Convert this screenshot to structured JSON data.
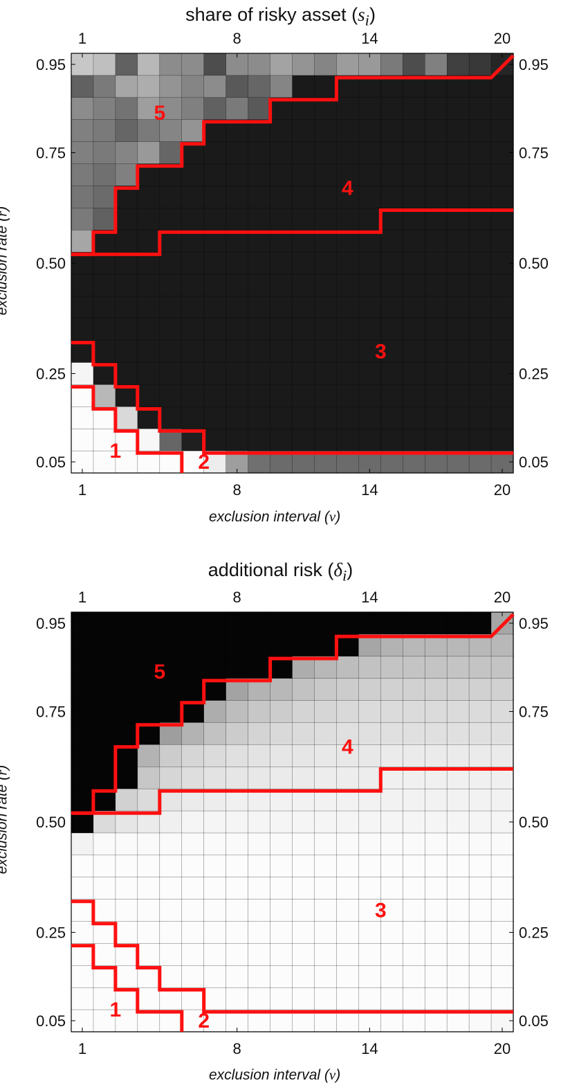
{
  "chart_data": [
    {
      "type": "heatmap",
      "title_text": "share of risky asset",
      "title_symbol": "s",
      "title_subscript": "i",
      "xlabel_text": "exclusion interval",
      "xlabel_symbol": "v",
      "ylabel_text": "exclusion rate",
      "ylabel_symbol": "r",
      "x_range": [
        1,
        20
      ],
      "y_range": [
        0.05,
        0.95
      ],
      "x_ticks": [
        "1",
        "8",
        "14",
        "20"
      ],
      "y_ticks": [
        "0.05",
        "0.25",
        "0.50",
        "0.75",
        "0.95"
      ],
      "region_labels": [
        "1",
        "2",
        "3",
        "4",
        "5"
      ],
      "colormap": "grayscale (black = low, white = high)",
      "rows_top_to_bottom": [
        [
          0.78,
          0.75,
          0.38,
          0.72,
          0.55,
          0.55,
          0.3,
          0.55,
          0.55,
          0.64,
          0.58,
          0.52,
          0.61,
          0.6,
          0.48,
          0.3,
          0.5,
          0.25,
          0.22,
          0.15
        ],
        [
          0.38,
          0.48,
          0.65,
          0.68,
          0.58,
          0.52,
          0.55,
          0.35,
          0.4,
          0.52,
          0.1,
          0.1,
          0.1,
          0.1,
          0.1,
          0.1,
          0.1,
          0.1,
          0.1,
          0.1
        ],
        [
          0.55,
          0.5,
          0.45,
          0.62,
          0.55,
          0.5,
          0.38,
          0.48,
          0.35,
          0.1,
          0.1,
          0.1,
          0.1,
          0.1,
          0.1,
          0.1,
          0.1,
          0.1,
          0.1,
          0.1
        ],
        [
          0.5,
          0.48,
          0.4,
          0.48,
          0.52,
          0.58,
          0.1,
          0.1,
          0.1,
          0.1,
          0.1,
          0.1,
          0.1,
          0.1,
          0.1,
          0.1,
          0.1,
          0.1,
          0.1,
          0.1
        ],
        [
          0.5,
          0.48,
          0.52,
          0.6,
          0.4,
          0.1,
          0.1,
          0.1,
          0.1,
          0.1,
          0.1,
          0.1,
          0.1,
          0.1,
          0.1,
          0.1,
          0.1,
          0.1,
          0.1,
          0.1
        ],
        [
          0.48,
          0.44,
          0.5,
          0.1,
          0.1,
          0.1,
          0.1,
          0.1,
          0.1,
          0.1,
          0.1,
          0.1,
          0.1,
          0.1,
          0.1,
          0.1,
          0.1,
          0.1,
          0.1,
          0.1
        ],
        [
          0.46,
          0.42,
          0.1,
          0.1,
          0.1,
          0.1,
          0.1,
          0.1,
          0.1,
          0.1,
          0.1,
          0.1,
          0.1,
          0.1,
          0.1,
          0.1,
          0.1,
          0.1,
          0.1,
          0.1
        ],
        [
          0.48,
          0.38,
          0.1,
          0.1,
          0.1,
          0.1,
          0.1,
          0.1,
          0.1,
          0.1,
          0.1,
          0.1,
          0.1,
          0.1,
          0.1,
          0.1,
          0.1,
          0.1,
          0.1,
          0.1
        ],
        [
          0.65,
          0.1,
          0.1,
          0.1,
          0.1,
          0.1,
          0.1,
          0.1,
          0.1,
          0.1,
          0.1,
          0.1,
          0.1,
          0.1,
          0.1,
          0.1,
          0.1,
          0.1,
          0.1,
          0.1
        ],
        [
          0.1,
          0.1,
          0.1,
          0.1,
          0.1,
          0.1,
          0.1,
          0.1,
          0.1,
          0.1,
          0.1,
          0.1,
          0.1,
          0.1,
          0.1,
          0.1,
          0.1,
          0.1,
          0.1,
          0.1
        ],
        [
          0.1,
          0.1,
          0.1,
          0.1,
          0.1,
          0.1,
          0.1,
          0.1,
          0.1,
          0.1,
          0.1,
          0.1,
          0.1,
          0.1,
          0.1,
          0.1,
          0.1,
          0.1,
          0.1,
          0.1
        ],
        [
          0.1,
          0.1,
          0.1,
          0.1,
          0.1,
          0.1,
          0.1,
          0.1,
          0.1,
          0.1,
          0.1,
          0.1,
          0.1,
          0.1,
          0.1,
          0.1,
          0.1,
          0.1,
          0.1,
          0.1
        ],
        [
          0.1,
          0.1,
          0.1,
          0.1,
          0.1,
          0.1,
          0.1,
          0.1,
          0.1,
          0.1,
          0.1,
          0.1,
          0.1,
          0.1,
          0.1,
          0.1,
          0.1,
          0.1,
          0.1,
          0.1
        ],
        [
          0.1,
          0.1,
          0.1,
          0.1,
          0.1,
          0.1,
          0.1,
          0.1,
          0.1,
          0.1,
          0.1,
          0.1,
          0.1,
          0.1,
          0.1,
          0.1,
          0.1,
          0.1,
          0.1,
          0.1
        ],
        [
          0.96,
          0.1,
          0.1,
          0.1,
          0.1,
          0.1,
          0.1,
          0.1,
          0.1,
          0.1,
          0.1,
          0.1,
          0.1,
          0.1,
          0.1,
          0.1,
          0.1,
          0.1,
          0.1,
          0.1
        ],
        [
          0.99,
          0.72,
          0.1,
          0.1,
          0.1,
          0.1,
          0.1,
          0.1,
          0.1,
          0.1,
          0.1,
          0.1,
          0.1,
          0.1,
          0.1,
          0.1,
          0.1,
          0.1,
          0.1,
          0.1
        ],
        [
          0.99,
          0.99,
          0.85,
          0.1,
          0.1,
          0.1,
          0.1,
          0.1,
          0.1,
          0.1,
          0.1,
          0.1,
          0.1,
          0.1,
          0.1,
          0.1,
          0.1,
          0.1,
          0.1,
          0.1
        ],
        [
          0.99,
          0.99,
          0.99,
          0.97,
          0.4,
          0.12,
          0.1,
          0.1,
          0.1,
          0.1,
          0.1,
          0.1,
          0.1,
          0.1,
          0.1,
          0.1,
          0.1,
          0.1,
          0.1,
          0.1
        ],
        [
          0.99,
          0.99,
          0.99,
          0.99,
          0.99,
          0.99,
          0.93,
          0.62,
          0.44,
          0.42,
          0.42,
          0.42,
          0.42,
          0.42,
          0.42,
          0.42,
          0.42,
          0.42,
          0.42,
          0.42
        ]
      ],
      "boundaries": {
        "1-2": [
          [
            1,
            0.22
          ],
          [
            2,
            0.22
          ],
          [
            2,
            0.17
          ],
          [
            3,
            0.17
          ],
          [
            3,
            0.12
          ],
          [
            4,
            0.12
          ],
          [
            4,
            0.07
          ],
          [
            6,
            0.07
          ],
          [
            6,
            0.02
          ]
        ],
        "2-3": [
          [
            1,
            0.32
          ],
          [
            2,
            0.32
          ],
          [
            2,
            0.27
          ],
          [
            3,
            0.27
          ],
          [
            3,
            0.22
          ],
          [
            4,
            0.22
          ],
          [
            4,
            0.17
          ],
          [
            5,
            0.17
          ],
          [
            5,
            0.12
          ],
          [
            7,
            0.12
          ],
          [
            7,
            0.07
          ],
          [
            20,
            0.07
          ]
        ],
        "3-4": [
          [
            1,
            0.52
          ],
          [
            5,
            0.52
          ],
          [
            5,
            0.57
          ],
          [
            15,
            0.57
          ],
          [
            15,
            0.62
          ],
          [
            20,
            0.62
          ]
        ],
        "4-5": [
          [
            1,
            0.52
          ],
          [
            2,
            0.52
          ],
          [
            2,
            0.57
          ],
          [
            3,
            0.57
          ],
          [
            3,
            0.67
          ],
          [
            4,
            0.67
          ],
          [
            4,
            0.72
          ],
          [
            6,
            0.72
          ],
          [
            6,
            0.77
          ],
          [
            7,
            0.77
          ],
          [
            7,
            0.82
          ],
          [
            10,
            0.82
          ],
          [
            10,
            0.87
          ],
          [
            13,
            0.87
          ],
          [
            13,
            0.92
          ],
          [
            20,
            0.92
          ],
          [
            20,
            0.97
          ]
        ]
      }
    },
    {
      "type": "heatmap",
      "title_text": "additional risk",
      "title_symbol": "δ",
      "title_subscript": "i",
      "xlabel_text": "exclusion interval",
      "xlabel_symbol": "v",
      "ylabel_text": "exclusion rate",
      "ylabel_symbol": "r",
      "x_range": [
        1,
        20
      ],
      "y_range": [
        0.05,
        0.95
      ],
      "x_ticks": [
        "1",
        "8",
        "14",
        "20"
      ],
      "y_ticks": [
        "0.05",
        "0.25",
        "0.50",
        "0.75",
        "0.95"
      ],
      "region_labels": [
        "1",
        "2",
        "3",
        "4",
        "5"
      ],
      "colormap": "grayscale (black = high, white = low)",
      "rows_top_to_bottom": [
        [
          0.02,
          0.02,
          0.02,
          0.02,
          0.02,
          0.02,
          0.02,
          0.02,
          0.02,
          0.02,
          0.02,
          0.02,
          0.02,
          0.02,
          0.02,
          0.02,
          0.02,
          0.02,
          0.02,
          0.65
        ],
        [
          0.02,
          0.02,
          0.02,
          0.02,
          0.02,
          0.02,
          0.02,
          0.02,
          0.02,
          0.02,
          0.02,
          0.02,
          0.02,
          0.65,
          0.7,
          0.72,
          0.72,
          0.72,
          0.72,
          0.72
        ],
        [
          0.02,
          0.02,
          0.02,
          0.02,
          0.02,
          0.02,
          0.02,
          0.02,
          0.02,
          0.02,
          0.68,
          0.72,
          0.74,
          0.76,
          0.77,
          0.77,
          0.77,
          0.77,
          0.77,
          0.77
        ],
        [
          0.02,
          0.02,
          0.02,
          0.02,
          0.02,
          0.02,
          0.02,
          0.64,
          0.7,
          0.72,
          0.76,
          0.79,
          0.8,
          0.81,
          0.82,
          0.82,
          0.82,
          0.82,
          0.82,
          0.82
        ],
        [
          0.02,
          0.02,
          0.02,
          0.02,
          0.02,
          0.02,
          0.68,
          0.74,
          0.78,
          0.8,
          0.83,
          0.84,
          0.85,
          0.86,
          0.86,
          0.86,
          0.86,
          0.86,
          0.86,
          0.86
        ],
        [
          0.02,
          0.02,
          0.02,
          0.02,
          0.62,
          0.7,
          0.76,
          0.8,
          0.83,
          0.85,
          0.86,
          0.87,
          0.88,
          0.88,
          0.88,
          0.88,
          0.88,
          0.88,
          0.88,
          0.88
        ],
        [
          0.02,
          0.02,
          0.02,
          0.7,
          0.8,
          0.84,
          0.86,
          0.88,
          0.89,
          0.9,
          0.9,
          0.91,
          0.91,
          0.91,
          0.92,
          0.92,
          0.92,
          0.92,
          0.92,
          0.92
        ],
        [
          0.02,
          0.02,
          0.02,
          0.78,
          0.84,
          0.87,
          0.89,
          0.9,
          0.91,
          0.92,
          0.92,
          0.93,
          0.93,
          0.93,
          0.94,
          0.94,
          0.94,
          0.94,
          0.94,
          0.94
        ],
        [
          0.02,
          0.02,
          0.82,
          0.86,
          0.9,
          0.92,
          0.93,
          0.94,
          0.94,
          0.95,
          0.95,
          0.95,
          0.95,
          0.95,
          0.95,
          0.95,
          0.95,
          0.95,
          0.95,
          0.95
        ],
        [
          0.02,
          0.86,
          0.9,
          0.92,
          0.94,
          0.96,
          0.96,
          0.96,
          0.96,
          0.96,
          0.96,
          0.96,
          0.96,
          0.96,
          0.96,
          0.96,
          0.96,
          0.96,
          0.96,
          0.96
        ],
        [
          0.95,
          0.98,
          0.98,
          0.98,
          0.98,
          0.98,
          0.98,
          0.98,
          0.98,
          0.98,
          0.98,
          0.98,
          0.98,
          0.98,
          0.98,
          0.98,
          0.98,
          0.98,
          0.98,
          0.98
        ],
        [
          0.99,
          0.99,
          0.99,
          0.99,
          0.99,
          0.99,
          0.99,
          0.99,
          0.99,
          0.99,
          0.99,
          0.99,
          0.99,
          0.99,
          0.99,
          0.99,
          0.99,
          0.99,
          0.99,
          0.99
        ],
        [
          0.99,
          0.99,
          0.99,
          0.99,
          0.99,
          0.99,
          0.99,
          0.99,
          0.99,
          0.99,
          0.99,
          0.99,
          0.99,
          0.99,
          0.99,
          0.99,
          0.99,
          0.99,
          0.99,
          0.99
        ],
        [
          0.99,
          0.99,
          0.99,
          0.99,
          0.99,
          0.99,
          0.99,
          0.99,
          0.99,
          0.99,
          0.99,
          0.99,
          0.99,
          0.99,
          0.99,
          0.99,
          0.99,
          0.99,
          0.99,
          0.99
        ],
        [
          0.99,
          0.99,
          0.99,
          0.99,
          0.99,
          0.99,
          0.99,
          0.99,
          0.99,
          0.99,
          0.99,
          0.99,
          0.99,
          0.99,
          0.99,
          0.99,
          0.99,
          0.99,
          0.99,
          0.99
        ],
        [
          0.99,
          0.99,
          0.99,
          0.99,
          0.99,
          0.99,
          0.99,
          0.99,
          0.99,
          0.99,
          0.99,
          0.99,
          0.99,
          0.99,
          0.99,
          0.99,
          0.99,
          0.99,
          0.99,
          0.99
        ],
        [
          0.99,
          0.99,
          0.99,
          0.99,
          0.99,
          0.99,
          0.99,
          0.99,
          0.99,
          0.99,
          0.99,
          0.99,
          0.99,
          0.99,
          0.99,
          0.99,
          0.99,
          0.99,
          0.99,
          0.99
        ],
        [
          0.99,
          0.99,
          0.99,
          0.99,
          0.99,
          0.99,
          0.99,
          0.99,
          0.99,
          0.99,
          0.99,
          0.99,
          0.99,
          0.99,
          0.99,
          0.99,
          0.99,
          0.99,
          0.99,
          0.99
        ],
        [
          0.99,
          0.99,
          0.99,
          0.99,
          0.99,
          0.99,
          0.99,
          0.99,
          0.99,
          0.99,
          0.99,
          0.99,
          0.99,
          0.99,
          0.99,
          0.99,
          0.99,
          0.99,
          0.98,
          0.97
        ]
      ],
      "boundaries": {
        "1-2": [
          [
            1,
            0.22
          ],
          [
            2,
            0.22
          ],
          [
            2,
            0.17
          ],
          [
            3,
            0.17
          ],
          [
            3,
            0.12
          ],
          [
            4,
            0.12
          ],
          [
            4,
            0.07
          ],
          [
            6,
            0.07
          ],
          [
            6,
            0.02
          ]
        ],
        "2-3": [
          [
            1,
            0.32
          ],
          [
            2,
            0.32
          ],
          [
            2,
            0.27
          ],
          [
            3,
            0.27
          ],
          [
            3,
            0.22
          ],
          [
            4,
            0.22
          ],
          [
            4,
            0.17
          ],
          [
            5,
            0.17
          ],
          [
            5,
            0.12
          ],
          [
            7,
            0.12
          ],
          [
            7,
            0.07
          ],
          [
            20,
            0.07
          ]
        ],
        "3-4": [
          [
            1,
            0.52
          ],
          [
            5,
            0.52
          ],
          [
            5,
            0.57
          ],
          [
            15,
            0.57
          ],
          [
            15,
            0.62
          ],
          [
            20,
            0.62
          ]
        ],
        "4-5": [
          [
            1,
            0.52
          ],
          [
            2,
            0.52
          ],
          [
            2,
            0.57
          ],
          [
            3,
            0.57
          ],
          [
            3,
            0.67
          ],
          [
            4,
            0.67
          ],
          [
            4,
            0.72
          ],
          [
            6,
            0.72
          ],
          [
            6,
            0.77
          ],
          [
            7,
            0.77
          ],
          [
            7,
            0.82
          ],
          [
            10,
            0.82
          ],
          [
            10,
            0.87
          ],
          [
            13,
            0.87
          ],
          [
            13,
            0.92
          ],
          [
            20,
            0.92
          ],
          [
            20,
            0.97
          ]
        ]
      }
    }
  ],
  "boundary_color": "#ff1010",
  "label_color": "#ff1010"
}
